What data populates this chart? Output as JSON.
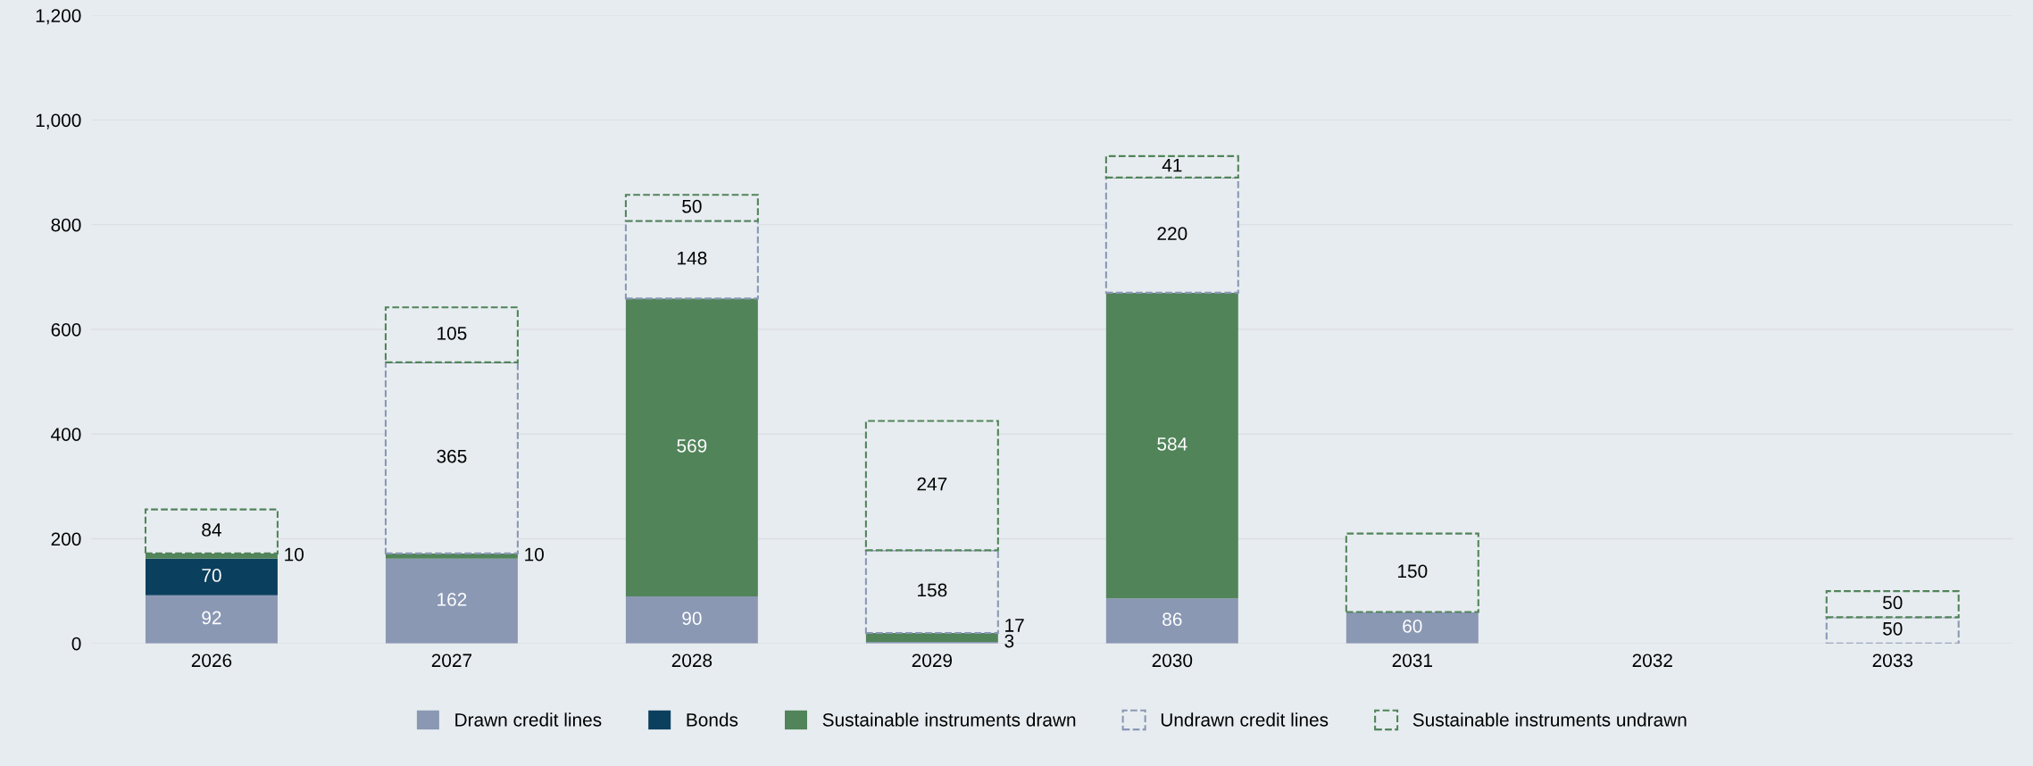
{
  "chart_data": {
    "type": "bar",
    "stacked": true,
    "data_labels": true,
    "grid": "y",
    "legend": "bottom",
    "categories": [
      "2026",
      "2027",
      "2028",
      "2029",
      "2030",
      "2031",
      "2032",
      "2033"
    ],
    "ylim": [
      0,
      1200
    ],
    "yticks": [
      0,
      200,
      400,
      600,
      800,
      {
        "value": 1000,
        "label": "1,000"
      },
      {
        "value": 1200,
        "label": "1,200"
      }
    ],
    "series": [
      {
        "name": "Drawn credit lines",
        "color": "#8a98b4",
        "values": [
          92,
          162,
          90,
          3,
          86,
          60,
          null,
          null
        ]
      },
      {
        "name": "Bonds",
        "color": "#0b3f5e",
        "values": [
          70,
          null,
          null,
          null,
          null,
          null,
          null,
          null
        ]
      },
      {
        "name": "Sustainable instruments drawn",
        "color": "#52845a",
        "values": [
          10,
          10,
          569,
          17,
          584,
          null,
          null,
          null
        ]
      },
      {
        "name": "Undrawn credit lines",
        "color": "#8a98b4",
        "line_style": "dashed",
        "values": [
          null,
          365,
          148,
          158,
          220,
          null,
          null,
          50
        ]
      },
      {
        "name": "Sustainable instruments undrawn",
        "color": "#52845a",
        "line_style": "dashed",
        "values": [
          84,
          105,
          50,
          247,
          41,
          150,
          null,
          50
        ]
      }
    ]
  }
}
